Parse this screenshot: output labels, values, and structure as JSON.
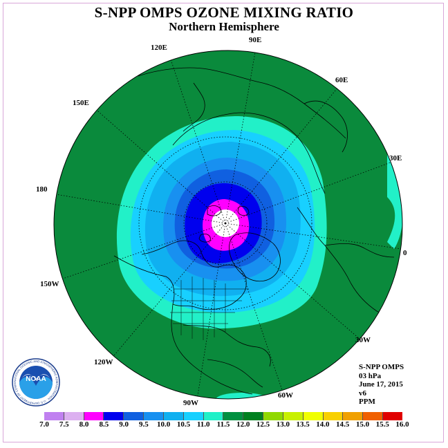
{
  "title": "S-NPP OMPS OZONE MIXING RATIO",
  "subtitle": "Northern Hemisphere",
  "info": {
    "instrument": "S-NPP OMPS",
    "level": "03 hPa",
    "date": "June 17, 2015",
    "version": "v6",
    "units": "PPM"
  },
  "longitude_labels": [
    "90E",
    "60E",
    "30E",
    "0",
    "30W",
    "60W",
    "90W",
    "120W",
    "150W",
    "180",
    "150E",
    "120E"
  ],
  "colorbar": {
    "ticks": [
      "7.0",
      "7.5",
      "8.0",
      "8.5",
      "9.0",
      "9.5",
      "10.0",
      "10.5",
      "11.0",
      "11.5",
      "12.0",
      "12.5",
      "13.0",
      "13.5",
      "14.0",
      "14.5",
      "15.0",
      "15.5",
      "16.0"
    ],
    "colors": [
      "#c080f0",
      "#dcb0f0",
      "#ff00ff",
      "#0000ee",
      "#1060e0",
      "#1890f0",
      "#10b0f0",
      "#18d0ff",
      "#20f0c8",
      "#009040",
      "#008020",
      "#90d800",
      "#c8f000",
      "#f0ff00",
      "#f8d000",
      "#f0a000",
      "#f06000",
      "#e00000",
      "#904000"
    ]
  },
  "map_colors": {
    "green": "#0a8a3c",
    "aqua": "#22f0c8",
    "cyan": "#18d0ff",
    "light_blue": "#10b0f0",
    "mid_blue": "#1890f0",
    "blue": "#1060e0",
    "deep_blue": "#0000ee",
    "magenta": "#ff00ff",
    "white": "#ffffff"
  },
  "logo": {
    "text": "NOAA",
    "ring_text": "NATIONAL OCEANIC AND ATMOSPHERIC ADMINISTRATION · U.S. DEPARTMENT OF COMMERCE"
  }
}
